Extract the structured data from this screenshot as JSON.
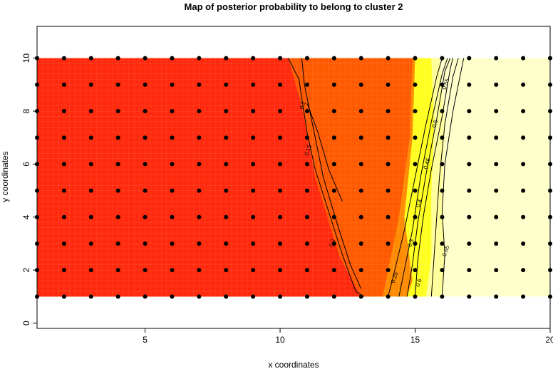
{
  "chart_data": {
    "type": "heatmap",
    "title": "Map of posterior probability to belong to cluster  2",
    "xlabel": "x coordinates",
    "ylabel": "y coordinates",
    "xlim": [
      1,
      20
    ],
    "ylim": [
      -0.2,
      11.2
    ],
    "xticks": [
      "5",
      "10",
      "15",
      "20"
    ],
    "xtick_values": [
      5,
      10,
      15,
      20
    ],
    "yticks": [
      "0",
      "2",
      "4",
      "6",
      "8",
      "10"
    ],
    "ytick_values": [
      0,
      2,
      4,
      6,
      8,
      10
    ],
    "grid": false,
    "colors": {
      "red": "#ff2a0d",
      "orange": "#ff5a00",
      "amber": "#ff8c00",
      "yellow": "#ffff20",
      "light_yellow": "#ffff9a",
      "cream": "#ffffcc"
    },
    "regions": [
      {
        "name": "red",
        "color": "#ff2a0d",
        "approx_value": 0.1
      },
      {
        "name": "orange",
        "color": "#ff5a00",
        "approx_value": 0.2
      },
      {
        "name": "yellow",
        "color": "#ffff20",
        "approx_value": 0.6
      },
      {
        "name": "cream",
        "color": "#ffffcc",
        "approx_value": 0.95
      }
    ],
    "contour_labels": [
      "0.1",
      "0.15",
      "0.2",
      "0.25",
      "0.3",
      "0.4",
      "0.45",
      "0.5",
      "0.55",
      "0.6",
      "0.65"
    ],
    "points": {
      "x_range": [
        1,
        20
      ],
      "y_range": [
        1,
        10
      ],
      "step": 1,
      "color": "#000000"
    }
  }
}
